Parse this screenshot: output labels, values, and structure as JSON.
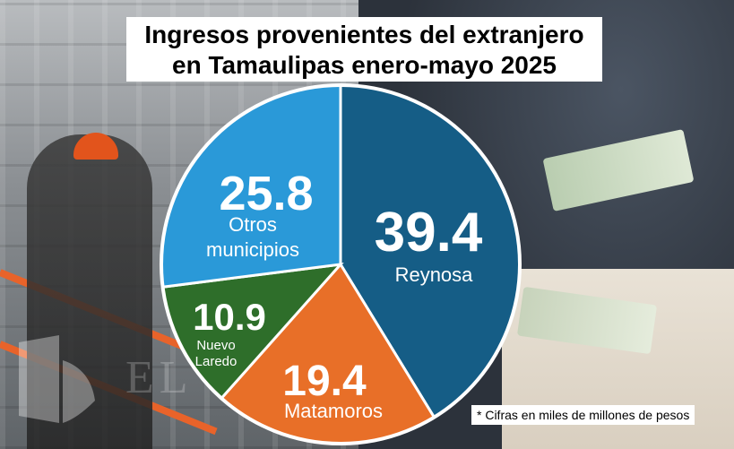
{
  "title": {
    "line1": "Ingresos provenientes del extranjero",
    "line2": "en Tamaulipas enero-mayo 2025"
  },
  "footnote": "* Cifras en miles de millones de pesos",
  "watermark": "EL ... OR",
  "chart_data": {
    "type": "pie",
    "title": "Ingresos provenientes del extranjero en Tamaulipas enero-mayo 2025",
    "unit_note": "Cifras en miles de millones de pesos",
    "slices": [
      {
        "label": "Reynosa",
        "value": 39.4,
        "display": "39.4",
        "color": "#155d86"
      },
      {
        "label": "Matamoros",
        "value": 19.4,
        "display": "19.4",
        "color": "#e86f28"
      },
      {
        "label": "Nuevo Laredo",
        "value": 10.9,
        "display": "10.9",
        "color": "#2e6e2a"
      },
      {
        "label": "Otros municipios",
        "value": 25.8,
        "display": "25.8",
        "color": "#2a99d8"
      }
    ]
  },
  "colors": {
    "slice_border": "#ffffff",
    "label_text": "#ffffff"
  }
}
